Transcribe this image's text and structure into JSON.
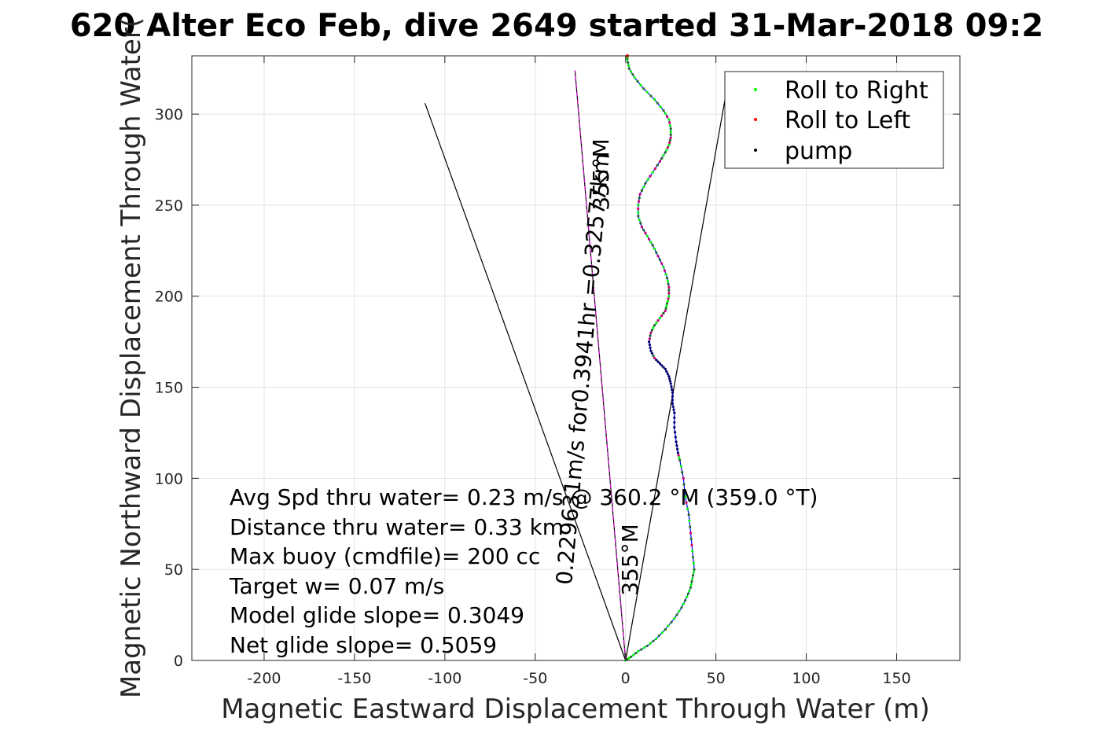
{
  "chart_data": {
    "type": "line",
    "title": "620 Alter Eco Feb, dive 2649 started 31-Mar-2018 09:2",
    "xlabel": "Magnetic Eastward Displacement Through Water (m)",
    "ylabel": "Magnetic Northward Displacement Through Water(",
    "xlim": [
      -240,
      185
    ],
    "ylim": [
      0,
      332
    ],
    "xticks": [
      -200,
      -150,
      -100,
      -50,
      0,
      50,
      100,
      150
    ],
    "yticks": [
      0,
      50,
      100,
      150,
      200,
      250,
      300
    ],
    "xtick_labels": [
      "-200",
      "-150",
      "-100",
      "-50",
      "0",
      "50",
      "100",
      "150"
    ],
    "ytick_labels": [
      "0",
      "50",
      "100",
      "150",
      "200",
      "250",
      "300"
    ],
    "grid": true,
    "legend_position": "top-right",
    "legend": [
      {
        "label": "Roll to Right",
        "color": "#00ff00"
      },
      {
        "label": "Roll to Left",
        "color": "#ff0000"
      },
      {
        "label": "pump",
        "color": "#000000"
      }
    ],
    "track": {
      "color": "#0000ff",
      "x": [
        0,
        3,
        7,
        12,
        17,
        22,
        27,
        31,
        34,
        36,
        37,
        38,
        37,
        36,
        35,
        33,
        32,
        30,
        29,
        28,
        27,
        27,
        26,
        26,
        25,
        24,
        22,
        19,
        16,
        14,
        13,
        14,
        16,
        19,
        22,
        23,
        24,
        24,
        23,
        21,
        18,
        15,
        12,
        9,
        7,
        7,
        8,
        11,
        15,
        19,
        22,
        24,
        25,
        25,
        24,
        21,
        16,
        10,
        5,
        2,
        1,
        1
      ],
      "y": [
        0,
        2,
        5,
        8,
        12,
        17,
        23,
        29,
        35,
        40,
        45,
        50,
        60,
        70,
        80,
        90,
        100,
        110,
        114,
        120,
        128,
        136,
        141,
        147,
        152,
        156,
        160,
        163,
        166,
        170,
        175,
        180,
        184,
        188,
        192,
        196,
        200,
        205,
        210,
        216,
        222,
        228,
        233,
        238,
        244,
        250,
        256,
        262,
        268,
        274,
        279,
        283,
        287,
        292,
        297,
        302,
        308,
        314,
        320,
        325,
        330,
        332
      ]
    },
    "pump_y_ranges": [
      [
        113,
        165
      ],
      [
        168,
        175
      ]
    ],
    "heading_line": {
      "color": "#cc00cc",
      "x": [
        0,
        -28
      ],
      "y": [
        0,
        324
      ]
    },
    "wedge_lines": [
      {
        "color": "#000000",
        "x": [
          0,
          -111
        ],
        "y": [
          0,
          306
        ]
      },
      {
        "color": "#000000",
        "x": [
          0,
          55
        ],
        "y": [
          0,
          308
        ]
      }
    ],
    "annotations": [
      "Avg Spd thru water=  0.23 m/s @ 360.2 °M (359.0 °T)",
      "Distance thru water=  0.33 km",
      "Max buoy (cmdfile)= 200 cc",
      "Target w= 0.07 m/s",
      "Model glide slope= 0.3049",
      "Net glide slope= 0.5059"
    ],
    "rotated_labels": [
      "0.229631m/s for0.3941hr =0.32577km",
      "355°M",
      "355°M"
    ]
  }
}
